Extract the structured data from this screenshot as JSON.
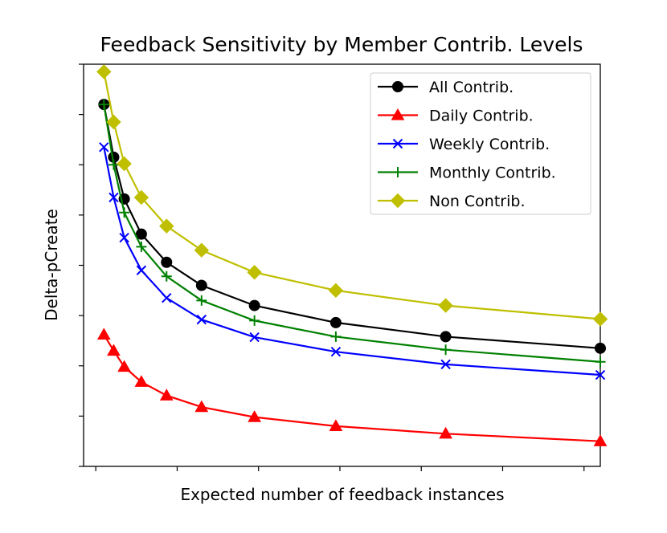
{
  "chart_data": {
    "type": "line",
    "title": "Feedback Sensitivity by Member Contrib. Levels",
    "xlabel": "Expected number of feedback instances",
    "ylabel": "Delta-pCreate",
    "x_tick_labels_shown": false,
    "y_tick_labels_shown": false,
    "xlim": [
      -0.15,
      6.2
    ],
    "ylim": [
      0,
      8
    ],
    "grid": false,
    "legend_position": "top-right",
    "x": [
      0.1,
      0.22,
      0.35,
      0.56,
      0.87,
      1.3,
      1.95,
      2.95,
      4.3,
      6.2
    ],
    "series": [
      {
        "name": "All Contrib.",
        "color": "#000000",
        "marker": "circle",
        "values": [
          7.2,
          6.15,
          5.32,
          4.62,
          4.06,
          3.6,
          3.2,
          2.86,
          2.58,
          2.35
        ]
      },
      {
        "name": "Daily Contrib.",
        "color": "#ff0000",
        "marker": "triangle",
        "values": [
          2.62,
          2.3,
          1.98,
          1.68,
          1.41,
          1.18,
          0.98,
          0.8,
          0.65,
          0.5
        ]
      },
      {
        "name": "Weekly Contrib.",
        "color": "#0000ff",
        "marker": "x",
        "values": [
          6.35,
          5.35,
          4.55,
          3.9,
          3.35,
          2.92,
          2.57,
          2.28,
          2.03,
          1.82
        ]
      },
      {
        "name": "Monthly Contrib.",
        "color": "#008000",
        "marker": "plus",
        "values": [
          7.2,
          6.0,
          5.05,
          4.37,
          3.78,
          3.3,
          2.9,
          2.58,
          2.32,
          2.08
        ]
      },
      {
        "name": "Non Contrib.",
        "color": "#bfbf00",
        "marker": "diamond",
        "values": [
          7.85,
          6.85,
          6.02,
          5.35,
          4.78,
          4.3,
          3.86,
          3.5,
          3.2,
          2.93
        ]
      }
    ]
  }
}
